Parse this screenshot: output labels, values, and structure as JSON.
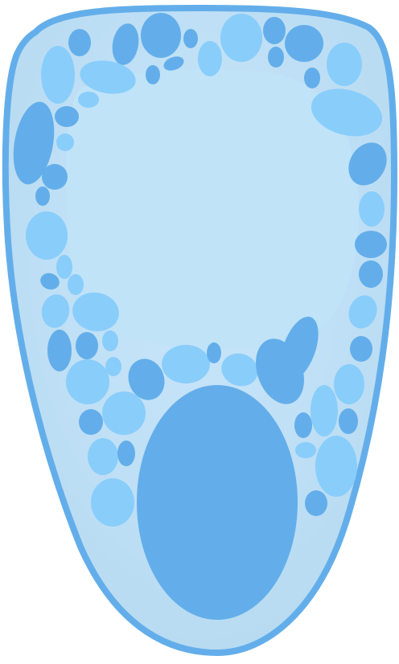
{
  "diagram": {
    "subject": "plant-cell-illustration",
    "labels": [],
    "colors": {
      "background": "#ffffff",
      "cell_wall": "#63aeea",
      "cytoplasm_edge": "#b8dbf2",
      "cytoplasm_center": "#c9e6fa",
      "vacuole": "#c0e3f8",
      "organelle_dark": "#63aeea",
      "organelle_light": "#89cdfb",
      "nucleus": "#63aeea"
    }
  }
}
